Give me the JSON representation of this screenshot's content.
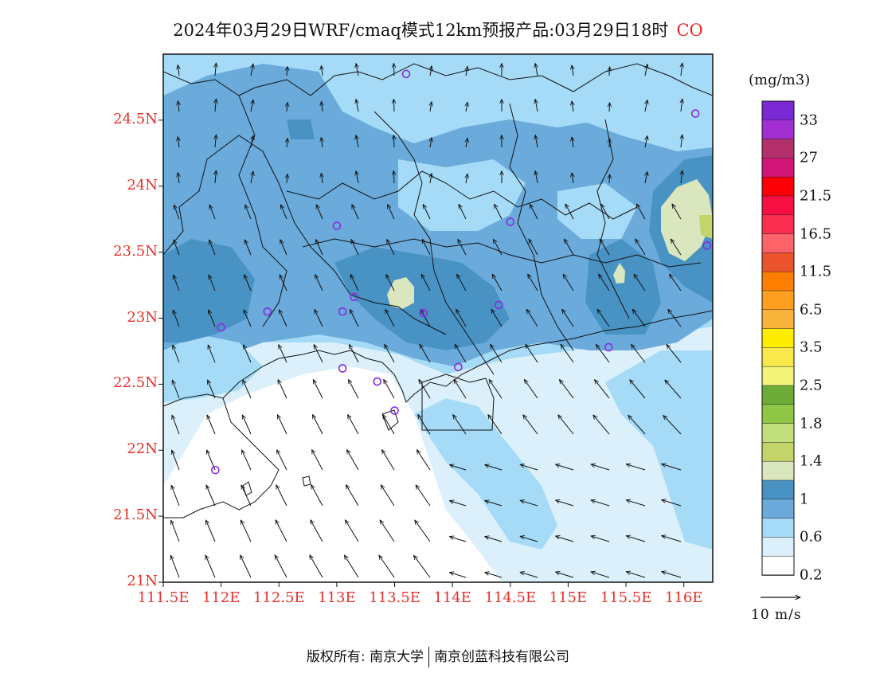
{
  "title": {
    "text": "2024年03月29日WRF/cmaq模式12km预报产品:03月29日18时",
    "species": "CO"
  },
  "latitude_labels": [
    "24.5N",
    "24N",
    "23.5N",
    "23N",
    "22.5N",
    "22N",
    "21.5N",
    "21N"
  ],
  "longitude_labels": [
    "111.5E",
    "112E",
    "112.5E",
    "113E",
    "113.5E",
    "114E",
    "114.5E",
    "115E",
    "115.5E",
    "116E"
  ],
  "extent": {
    "lon_min": 111.5,
    "lon_max": 116.25,
    "lat_min": 21.0,
    "lat_max": 25.0
  },
  "colorbar": {
    "unit": "(mg/m3)",
    "labels": [
      "33",
      "27",
      "21.5",
      "16.5",
      "11.5",
      "6.5",
      "3.5",
      "2.5",
      "1.8",
      "1.4",
      "1",
      "0.6",
      "0.2"
    ],
    "colors_top_to_bottom": [
      "#7b29d4",
      "#a12fd1",
      "#b3306b",
      "#cf1677",
      "#fb0006",
      "#f70f43",
      "#fb2e52",
      "#fd6368",
      "#ec542c",
      "#fe7f00",
      "#fe9f20",
      "#f9b43d",
      "#ffed00",
      "#f8e84a",
      "#f1f479",
      "#6cac37",
      "#8fc646",
      "#c2e07a",
      "#c2d46a",
      "#dae6bd",
      "#4993c4",
      "#6aabdb",
      "#a5dbf7",
      "#dbf0fb",
      "#ffffff"
    ]
  },
  "field_colors": {
    "white": "#ffffff",
    "lightest": "#dbf0fb",
    "light": "#a5dbf7",
    "mid": "#6aabdb",
    "dark": "#4993c4",
    "yellow_green": "#dae6bd",
    "green": "#c2d46a"
  },
  "stations": [
    {
      "lon": 113.6,
      "lat": 24.85
    },
    {
      "lon": 116.1,
      "lat": 24.55
    },
    {
      "lon": 113.0,
      "lat": 23.7
    },
    {
      "lon": 114.5,
      "lat": 23.73
    },
    {
      "lon": 116.2,
      "lat": 23.55
    },
    {
      "lon": 112.4,
      "lat": 23.05
    },
    {
      "lon": 113.05,
      "lat": 23.05
    },
    {
      "lon": 113.15,
      "lat": 23.16
    },
    {
      "lon": 113.75,
      "lat": 23.04
    },
    {
      "lon": 114.4,
      "lat": 23.1
    },
    {
      "lon": 112.0,
      "lat": 22.93
    },
    {
      "lon": 115.35,
      "lat": 22.78
    },
    {
      "lon": 113.05,
      "lat": 22.62
    },
    {
      "lon": 114.05,
      "lat": 22.63
    },
    {
      "lon": 113.35,
      "lat": 22.52
    },
    {
      "lon": 113.5,
      "lat": 22.3
    },
    {
      "lon": 111.95,
      "lat": 21.85
    }
  ],
  "station_color": "#8a2be2",
  "reference_vector": {
    "label": "10 m/s"
  },
  "footer": {
    "left": "版权所有: 南京大学",
    "right": "南京创蓝科技有限公司"
  }
}
